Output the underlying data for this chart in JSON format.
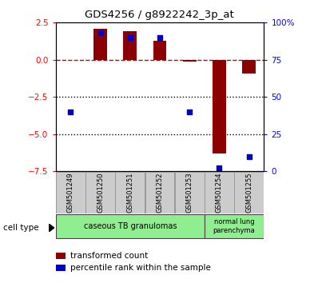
{
  "title": "GDS4256 / g8922242_3p_at",
  "samples": [
    "GSM501249",
    "GSM501250",
    "GSM501251",
    "GSM501252",
    "GSM501253",
    "GSM501254",
    "GSM501255"
  ],
  "transformed_count": [
    0.0,
    2.1,
    1.9,
    1.3,
    -0.1,
    -6.3,
    -0.9
  ],
  "percentile_rank": [
    40,
    93,
    90,
    90,
    40,
    2,
    10
  ],
  "ylim_left": [
    -7.5,
    2.5
  ],
  "ylim_right": [
    0,
    100
  ],
  "yticks_left": [
    2.5,
    0,
    -2.5,
    -5.0,
    -7.5
  ],
  "yticks_right": [
    100,
    75,
    50,
    25,
    0
  ],
  "ytick_right_labels": [
    "100%",
    "75",
    "50",
    "25",
    "0"
  ],
  "bar_color": "#8B0000",
  "dot_color": "#0000CC",
  "zero_line_color": "#CC0000",
  "dotted_line_color": "#000000",
  "cell_type_label": "cell type",
  "legend_bar_label": "transformed count",
  "legend_dot_label": "percentile rank within the sample",
  "group1_label": "caseous TB granulomas",
  "group2_label": "normal lung\nparenchyma",
  "group_color": "#90EE90",
  "sample_box_color": "#CCCCCC",
  "sample_box_edge": "#999999"
}
